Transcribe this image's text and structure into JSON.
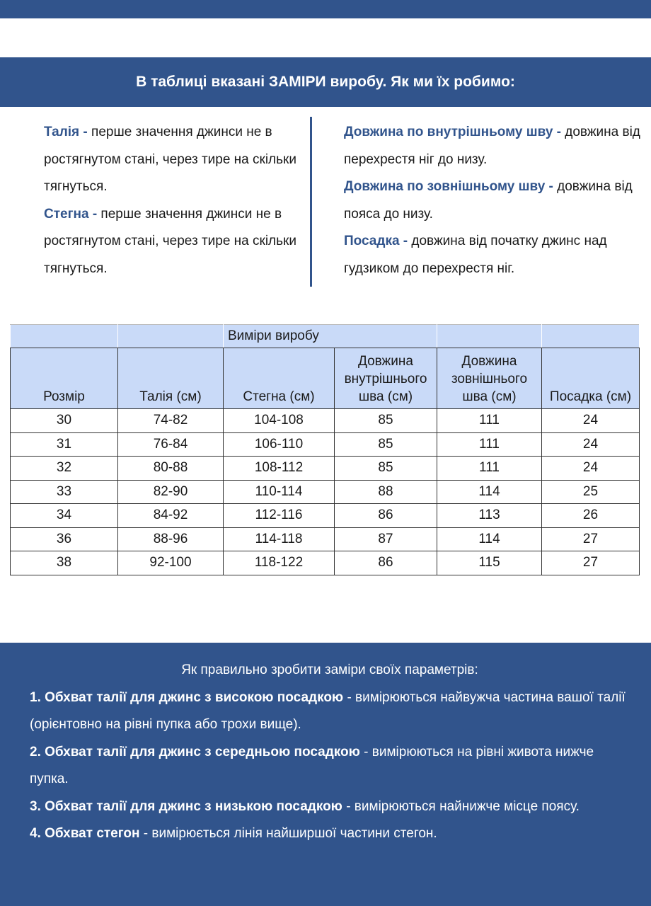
{
  "banner_title": "В таблиці вказані ЗАМІРИ виробу. Як ми їх робимо:",
  "left": [
    {
      "term": "Талія -",
      "text": " перше значення джинси не в ростягнутом стані, через тире на скільки тягнуться."
    },
    {
      "term": "Стегна -",
      "text": " перше значення джинси не в ростягнутом стані, через тире на скільки тягнуться."
    }
  ],
  "right": [
    {
      "term": "Довжина по внутрішньому шву -",
      "text": " довжина від перехрестя ніг до низу."
    },
    {
      "term": "Довжина по зовнішньому шву -",
      "text": " довжина від пояса до низу."
    },
    {
      "term": "Посадка -",
      "text": " довжина від початку джинс над гудзиком до перехрестя ніг."
    }
  ],
  "table": {
    "group_header": "Виміри виробу",
    "headers": [
      "Розмір",
      "Талія (см)",
      "Стегна (см)",
      "Довжина внутрішнього шва (см)",
      "Довжина зовнішнього шва (см)",
      "Посадка (см)"
    ],
    "rows": [
      [
        "30",
        "74-82",
        "104-108",
        "85",
        "111",
        "24"
      ],
      [
        "31",
        "76-84",
        "106-110",
        "85",
        "111",
        "24"
      ],
      [
        "32",
        "80-88",
        "108-112",
        "85",
        "111",
        "24"
      ],
      [
        "33",
        "82-90",
        "110-114",
        "88",
        "114",
        "25"
      ],
      [
        "34",
        "84-92",
        "112-116",
        "86",
        "113",
        "26"
      ],
      [
        "36",
        "88-96",
        "114-118",
        "87",
        "114",
        "27"
      ],
      [
        "38",
        "92-100",
        "118-122",
        "86",
        "115",
        "27"
      ]
    ]
  },
  "bottom": {
    "title": "Як правильно зробити заміри своїх параметрів:",
    "items": [
      {
        "bold": "1. Обхват талії для джинс з високою посадкою",
        "text": " - вимірюються найвужча частина вашої талії (орієнтовно на рівні пупка або трохи вище)."
      },
      {
        "bold": "2. Обхват талії для джинс з середньою посадкою",
        "text": " - вимірюються на рівні живота нижче пупка."
      },
      {
        "bold": "3. Обхват талії для джинс з низькою посадкою",
        "text": " - вимірюються найнижче місце поясу."
      },
      {
        "bold": "4. Обхват стегон",
        "text": " - вимірюється лінія найширшої частини стегон."
      }
    ]
  },
  "colors": {
    "brand": "#31548c",
    "table_header": "#c9daf8"
  }
}
